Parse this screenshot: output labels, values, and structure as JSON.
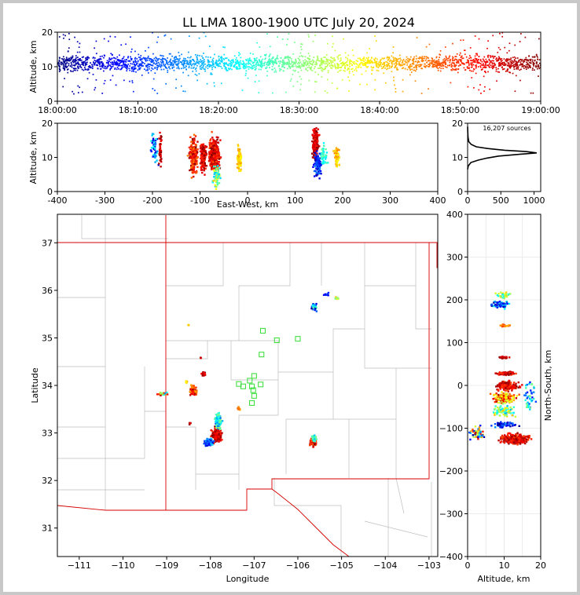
{
  "title": "LL LMA 1800-1900 UTC July 20, 2024",
  "source_count_label": "16,207 sources",
  "chart_data": [
    {
      "id": "time-altitude",
      "type": "scatter",
      "ylabel": "Altitude, km",
      "xlim": [
        "18:00:00",
        "19:00:00"
      ],
      "ylim": [
        0,
        20
      ],
      "x_ticks": [
        "18:00:00",
        "18:10:00",
        "18:20:00",
        "18:30:00",
        "18:40:00",
        "18:50:00",
        "19:00:00"
      ],
      "y_ticks": [
        "0",
        "10",
        "20"
      ],
      "color_encoding": "time (blue to red)",
      "band": {
        "center_alt_km": 11,
        "spread_km": 2.2,
        "min_alt_km": 2,
        "max_alt_km": 20
      }
    },
    {
      "id": "eastwest-altitude",
      "type": "scatter",
      "xlabel": "East-West, km",
      "ylabel": "Altitude, km",
      "xlim": [
        -400,
        400
      ],
      "ylim": [
        0,
        20
      ],
      "x_ticks": [
        "-400",
        "-300",
        "-200",
        "-100",
        "0",
        "100",
        "200",
        "300",
        "400"
      ],
      "y_ticks": [
        "0",
        "10",
        "20"
      ],
      "clusters": [
        {
          "x": -195,
          "alt": 13,
          "wx": 7,
          "walt": 4,
          "n": 60,
          "t": [
            0.05,
            0.4
          ]
        },
        {
          "x": -183,
          "alt": 12,
          "wx": 3,
          "walt": 5,
          "n": 40,
          "t": [
            0.85,
            1.0
          ]
        },
        {
          "x": -113,
          "alt": 10,
          "wx": 8,
          "walt": 5,
          "n": 220,
          "t": [
            0.75,
            1.0
          ]
        },
        {
          "x": -93,
          "alt": 10,
          "wx": 6,
          "walt": 4,
          "n": 150,
          "t": [
            0.82,
            1.0
          ]
        },
        {
          "x": -70,
          "alt": 11,
          "wx": 10,
          "walt": 4.5,
          "n": 320,
          "t": [
            0.8,
            1.0
          ]
        },
        {
          "x": -65,
          "alt": 4,
          "wx": 7,
          "walt": 3,
          "n": 70,
          "t": [
            0.3,
            0.7
          ]
        },
        {
          "x": -17,
          "alt": 9.5,
          "wx": 4,
          "walt": 3,
          "n": 80,
          "t": [
            0.62,
            0.72
          ]
        },
        {
          "x": 143,
          "alt": 14,
          "wx": 6,
          "walt": 4,
          "n": 240,
          "t": [
            0.85,
            1.0
          ]
        },
        {
          "x": 148,
          "alt": 8,
          "wx": 8,
          "walt": 3,
          "n": 110,
          "t": [
            0.02,
            0.3
          ]
        },
        {
          "x": 160,
          "alt": 11,
          "wx": 6,
          "walt": 3,
          "n": 40,
          "t": [
            0.35,
            0.5
          ]
        },
        {
          "x": 188,
          "alt": 10,
          "wx": 5,
          "walt": 3,
          "n": 60,
          "t": [
            0.6,
            0.75
          ]
        }
      ]
    },
    {
      "id": "altitude-histogram",
      "type": "line",
      "xlim": [
        0,
        1100
      ],
      "ylim": [
        0,
        20
      ],
      "x_ticks": [
        "0",
        "500",
        "1000"
      ],
      "y_ticks": [
        "0",
        "10",
        "20"
      ],
      "profile": [
        [
          6.5,
          0
        ],
        [
          7.5,
          10
        ],
        [
          8.5,
          50
        ],
        [
          9.2,
          160
        ],
        [
          9.8,
          290
        ],
        [
          10.4,
          470
        ],
        [
          10.9,
          780
        ],
        [
          11.3,
          1040
        ],
        [
          11.7,
          880
        ],
        [
          12.1,
          560
        ],
        [
          12.6,
          300
        ],
        [
          13.1,
          130
        ],
        [
          13.8,
          55
        ],
        [
          14.6,
          18
        ],
        [
          16,
          6
        ],
        [
          17.5,
          2
        ],
        [
          19,
          0
        ]
      ]
    },
    {
      "id": "plan-view",
      "type": "scatter",
      "xlabel": "Longitude",
      "ylabel": "Latitude",
      "xlim": [
        -111.5,
        -102.8
      ],
      "ylim": [
        30.4,
        37.6
      ],
      "x_ticks": [
        "−111",
        "−110",
        "−109",
        "−108",
        "−107",
        "−106",
        "−105",
        "−104",
        "−103"
      ],
      "y_ticks": [
        "31",
        "32",
        "33",
        "34",
        "35",
        "36",
        "37"
      ],
      "stations": [
        [
          -106.8,
          35.15
        ],
        [
          -106.48,
          34.95
        ],
        [
          -106.0,
          34.98
        ],
        [
          -106.83,
          34.65
        ],
        [
          -107.0,
          34.2
        ],
        [
          -107.1,
          34.1
        ],
        [
          -107.35,
          34.03
        ],
        [
          -107.25,
          33.98
        ],
        [
          -107.05,
          33.98
        ],
        [
          -106.85,
          34.02
        ],
        [
          -107.02,
          33.9
        ],
        [
          -107.0,
          33.78
        ],
        [
          -107.05,
          33.63
        ]
      ],
      "clusters": [
        {
          "lon": -107.85,
          "lat": 32.95,
          "wx": 0.1,
          "wy": 0.13,
          "n": 180,
          "t": [
            0.82,
            1.0
          ]
        },
        {
          "lon": -107.82,
          "lat": 33.25,
          "wx": 0.07,
          "wy": 0.15,
          "n": 90,
          "t": [
            0.2,
            0.55
          ]
        },
        {
          "lon": -108.03,
          "lat": 32.8,
          "wx": 0.1,
          "wy": 0.08,
          "n": 60,
          "t": [
            0.05,
            0.35
          ]
        },
        {
          "lon": -108.15,
          "lat": 34.24,
          "wx": 0.04,
          "wy": 0.04,
          "n": 40,
          "t": [
            0.85,
            1.0
          ]
        },
        {
          "lon": -108.4,
          "lat": 33.9,
          "wx": 0.07,
          "wy": 0.1,
          "n": 70,
          "t": [
            0.7,
            1.0
          ]
        },
        {
          "lon": -108.55,
          "lat": 34.08,
          "wx": 0.02,
          "wy": 0.03,
          "n": 8,
          "t": [
            0.6,
            0.75
          ]
        },
        {
          "lon": -109.1,
          "lat": 33.82,
          "wx": 0.1,
          "wy": 0.04,
          "n": 25,
          "t": [
            0.1,
            1.0
          ]
        },
        {
          "lon": -108.47,
          "lat": 33.2,
          "wx": 0.02,
          "wy": 0.02,
          "n": 6,
          "t": [
            0.8,
            1.0
          ]
        },
        {
          "lon": -107.35,
          "lat": 33.52,
          "wx": 0.03,
          "wy": 0.03,
          "n": 12,
          "t": [
            0.7,
            0.78
          ]
        },
        {
          "lon": -108.5,
          "lat": 35.27,
          "wx": 0.01,
          "wy": 0.01,
          "n": 4,
          "t": [
            0.65,
            0.72
          ]
        },
        {
          "lon": -108.22,
          "lat": 34.58,
          "wx": 0.01,
          "wy": 0.01,
          "n": 3,
          "t": [
            0.85,
            1.0
          ]
        },
        {
          "lon": -105.63,
          "lat": 35.65,
          "wx": 0.05,
          "wy": 0.06,
          "n": 45,
          "t": [
            0.0,
            0.5
          ]
        },
        {
          "lon": -105.35,
          "lat": 35.92,
          "wx": 0.05,
          "wy": 0.04,
          "n": 14,
          "t": [
            0.1,
            0.2
          ]
        },
        {
          "lon": -105.1,
          "lat": 35.82,
          "wx": 0.04,
          "wy": 0.03,
          "n": 12,
          "t": [
            0.45,
            0.7
          ]
        },
        {
          "lon": -105.65,
          "lat": 32.8,
          "wx": 0.06,
          "wy": 0.07,
          "n": 120,
          "t": [
            0.75,
            1.0
          ]
        },
        {
          "lon": -105.62,
          "lat": 32.88,
          "wx": 0.05,
          "wy": 0.05,
          "n": 30,
          "t": [
            0.3,
            0.5
          ]
        }
      ]
    },
    {
      "id": "altitude-northsouth",
      "type": "scatter",
      "xlabel": "Altitude, km",
      "ylabel": "North-South, km",
      "xlim": [
        0,
        20
      ],
      "ylim": [
        -400,
        400
      ],
      "x_ticks": [
        "0",
        "10",
        "20"
      ],
      "y_ticks": [
        "−400",
        "−300",
        "−200",
        "−100",
        "0",
        "100",
        "200",
        "300",
        "400"
      ],
      "clusters": [
        {
          "alt": 9,
          "ns": 190,
          "walt": 2.2,
          "wns": 8,
          "n": 80,
          "t": [
            0.0,
            0.45
          ]
        },
        {
          "alt": 10,
          "ns": 210,
          "walt": 2,
          "wns": 8,
          "n": 30,
          "t": [
            0.35,
            0.7
          ]
        },
        {
          "alt": 10,
          "ns": 140,
          "walt": 1.5,
          "wns": 3,
          "n": 20,
          "t": [
            0.7,
            0.85
          ]
        },
        {
          "alt": 10,
          "ns": 65,
          "walt": 1.5,
          "wns": 2,
          "n": 15,
          "t": [
            0.9,
            1.0
          ]
        },
        {
          "alt": 10.5,
          "ns": 28,
          "walt": 2.2,
          "wns": 4,
          "n": 80,
          "t": [
            0.82,
            1.0
          ]
        },
        {
          "alt": 11,
          "ns": 0,
          "walt": 2.8,
          "wns": 10,
          "n": 160,
          "t": [
            0.8,
            1.0
          ]
        },
        {
          "alt": 10,
          "ns": -30,
          "walt": 3,
          "wns": 12,
          "n": 150,
          "t": [
            0.55,
            0.95
          ]
        },
        {
          "alt": 10,
          "ns": -60,
          "walt": 3,
          "wns": 12,
          "n": 80,
          "t": [
            0.3,
            0.7
          ]
        },
        {
          "alt": 10,
          "ns": -92,
          "walt": 3,
          "wns": 6,
          "n": 70,
          "t": [
            0.0,
            0.3
          ]
        },
        {
          "alt": 13,
          "ns": -125,
          "walt": 3.2,
          "wns": 10,
          "n": 380,
          "t": [
            0.8,
            1.0
          ]
        },
        {
          "alt": 2.5,
          "ns": -110,
          "walt": 1.8,
          "wns": 15,
          "n": 60,
          "t": [
            0.0,
            1.0
          ]
        },
        {
          "alt": 17,
          "ns": -25,
          "walt": 1.5,
          "wns": 30,
          "n": 40,
          "t": [
            0.1,
            0.5
          ]
        }
      ]
    }
  ]
}
